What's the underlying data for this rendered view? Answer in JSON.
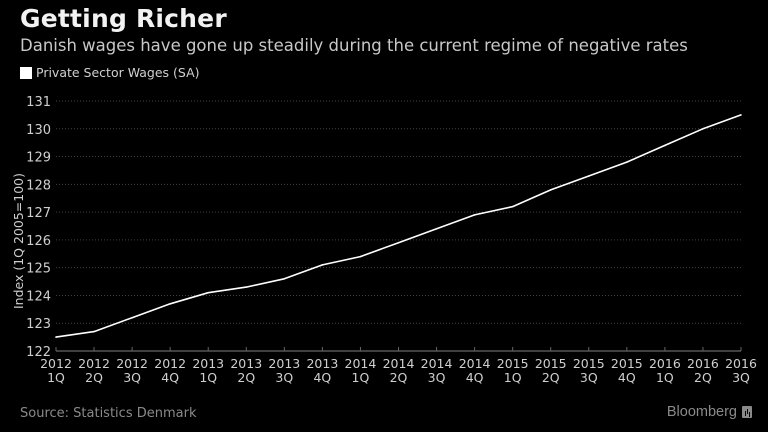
{
  "header": {
    "title": "Getting Richer",
    "subtitle": "Danish wages have gone up steadily during the current regime of negative rates"
  },
  "footer": {
    "source": "Source: Statistics Denmark",
    "brand": "Bloomberg",
    "brand_icon": "bloomberg-terminal-icon"
  },
  "colors": {
    "background": "#000000",
    "line": "#ffffff",
    "gridline": "#444444",
    "axis": "#666666",
    "tick_text": "#cfcfcf"
  },
  "chart_data": {
    "type": "line",
    "title": "Getting Richer",
    "subtitle": "Danish wages have gone up steadily during the current regime of negative rates",
    "xlabel": "",
    "ylabel": "Index (1Q 2005=100)",
    "ylim": [
      122,
      131
    ],
    "yticks": [
      122,
      123,
      124,
      125,
      126,
      127,
      128,
      129,
      130,
      131
    ],
    "grid": true,
    "legend_position": "top-left",
    "categories": [
      [
        "2012",
        "1Q"
      ],
      [
        "2012",
        "2Q"
      ],
      [
        "2012",
        "3Q"
      ],
      [
        "2012",
        "4Q"
      ],
      [
        "2013",
        "1Q"
      ],
      [
        "2013",
        "2Q"
      ],
      [
        "2013",
        "3Q"
      ],
      [
        "2013",
        "4Q"
      ],
      [
        "2014",
        "1Q"
      ],
      [
        "2014",
        "2Q"
      ],
      [
        "2014",
        "3Q"
      ],
      [
        "2014",
        "4Q"
      ],
      [
        "2015",
        "1Q"
      ],
      [
        "2015",
        "2Q"
      ],
      [
        "2015",
        "3Q"
      ],
      [
        "2015",
        "4Q"
      ],
      [
        "2016",
        "1Q"
      ],
      [
        "2016",
        "2Q"
      ],
      [
        "2016",
        "3Q"
      ]
    ],
    "series": [
      {
        "name": "Private Sector Wages (SA)",
        "color": "#ffffff",
        "values": [
          122.5,
          122.7,
          123.2,
          123.7,
          124.1,
          124.3,
          124.6,
          125.1,
          125.4,
          125.9,
          126.4,
          126.9,
          127.2,
          127.8,
          128.3,
          128.8,
          129.4,
          130.0,
          130.5
        ]
      }
    ],
    "source": "Source: Statistics Denmark"
  }
}
